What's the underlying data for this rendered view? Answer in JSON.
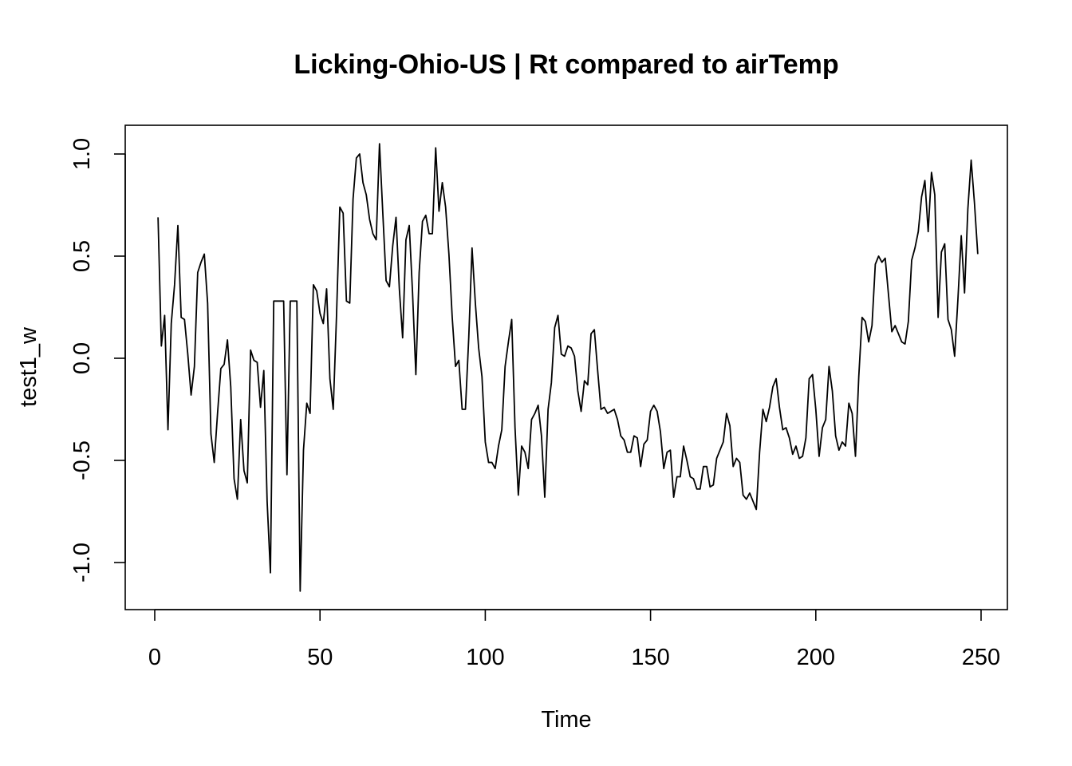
{
  "chart_data": {
    "type": "line",
    "title": "Licking-Ohio-US | Rt compared to airTemp",
    "xlabel": "Time",
    "ylabel": "test1_w",
    "xlim": [
      1,
      250
    ],
    "ylim": [
      -1.2,
      1.15
    ],
    "x_ticks": [
      0,
      50,
      100,
      150,
      200,
      250
    ],
    "x_tick_labels": [
      "0",
      "50",
      "100",
      "150",
      "200",
      "250"
    ],
    "y_ticks": [
      -1.0,
      -0.5,
      0.0,
      0.5,
      1.0
    ],
    "y_tick_labels": [
      "-1.0",
      "-0.5",
      "0.0",
      "0.5",
      "1.0"
    ],
    "grid": false,
    "legend": "none",
    "colors": {
      "line": "#000000",
      "axis": "#000000",
      "background": "#ffffff"
    },
    "x_start": 1,
    "values": [
      0.69,
      0.06,
      0.21,
      -0.35,
      0.17,
      0.36,
      0.65,
      0.2,
      0.19,
      0.02,
      -0.18,
      -0.04,
      0.42,
      0.47,
      0.51,
      0.27,
      -0.37,
      -0.51,
      -0.27,
      -0.05,
      -0.03,
      0.09,
      -0.14,
      -0.59,
      -0.69,
      -0.3,
      -0.55,
      -0.61,
      0.04,
      -0.01,
      -0.02,
      -0.24,
      -0.06,
      -0.7,
      -1.05,
      0.28,
      0.28,
      0.28,
      0.28,
      -0.57,
      0.28,
      0.28,
      0.28,
      -1.14,
      -0.45,
      -0.22,
      -0.27,
      0.36,
      0.33,
      0.22,
      0.17,
      0.34,
      -0.1,
      -0.25,
      0.21,
      0.74,
      0.71,
      0.28,
      0.27,
      0.78,
      0.98,
      1.0,
      0.86,
      0.8,
      0.68,
      0.61,
      0.58,
      1.05,
      0.71,
      0.38,
      0.35,
      0.55,
      0.69,
      0.34,
      0.1,
      0.58,
      0.65,
      0.32,
      -0.08,
      0.42,
      0.67,
      0.7,
      0.61,
      0.61,
      1.03,
      0.72,
      0.86,
      0.74,
      0.51,
      0.2,
      -0.04,
      -0.01,
      -0.25,
      -0.25,
      0.1,
      0.54,
      0.27,
      0.05,
      -0.09,
      -0.41,
      -0.51,
      -0.51,
      -0.54,
      -0.43,
      -0.35,
      -0.04,
      0.08,
      0.19,
      -0.34,
      -0.67,
      -0.43,
      -0.46,
      -0.54,
      -0.3,
      -0.27,
      -0.23,
      -0.38,
      -0.68,
      -0.25,
      -0.12,
      0.15,
      0.21,
      0.02,
      0.01,
      0.06,
      0.05,
      0.01,
      -0.16,
      -0.26,
      -0.11,
      -0.13,
      0.12,
      0.14,
      -0.06,
      -0.25,
      -0.24,
      -0.27,
      -0.26,
      -0.25,
      -0.3,
      -0.38,
      -0.4,
      -0.46,
      -0.46,
      -0.38,
      -0.39,
      -0.53,
      -0.42,
      -0.4,
      -0.26,
      -0.23,
      -0.26,
      -0.36,
      -0.54,
      -0.46,
      -0.45,
      -0.68,
      -0.58,
      -0.58,
      -0.43,
      -0.5,
      -0.58,
      -0.59,
      -0.64,
      -0.64,
      -0.53,
      -0.53,
      -0.63,
      -0.62,
      -0.49,
      -0.45,
      -0.41,
      -0.27,
      -0.33,
      -0.53,
      -0.49,
      -0.51,
      -0.67,
      -0.69,
      -0.66,
      -0.7,
      -0.74,
      -0.46,
      -0.25,
      -0.31,
      -0.24,
      -0.14,
      -0.1,
      -0.24,
      -0.35,
      -0.34,
      -0.39,
      -0.47,
      -0.43,
      -0.49,
      -0.48,
      -0.39,
      -0.1,
      -0.08,
      -0.25,
      -0.48,
      -0.34,
      -0.3,
      -0.04,
      -0.16,
      -0.38,
      -0.45,
      -0.41,
      -0.43,
      -0.22,
      -0.27,
      -0.48,
      -0.09,
      0.2,
      0.18,
      0.08,
      0.16,
      0.46,
      0.5,
      0.47,
      0.49,
      0.31,
      0.13,
      0.16,
      0.12,
      0.08,
      0.07,
      0.18,
      0.48,
      0.54,
      0.62,
      0.79,
      0.87,
      0.62,
      0.91,
      0.8,
      0.2,
      0.52,
      0.56,
      0.19,
      0.14,
      0.01,
      0.29,
      0.6,
      0.32,
      0.73,
      0.97,
      0.76,
      0.51
    ]
  }
}
